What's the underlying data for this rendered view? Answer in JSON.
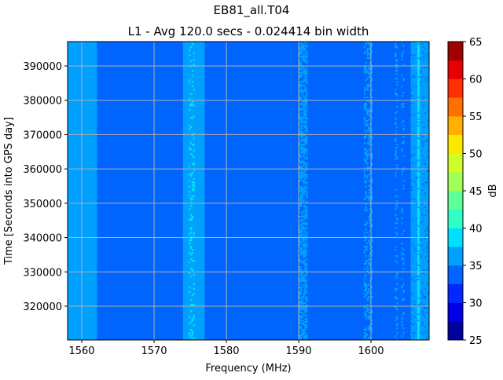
{
  "chart_data": {
    "type": "heatmap",
    "title": "EB81_all.T04",
    "subtitle": "L1 - Avg 120.0 secs - 0.024414 bin width",
    "xlabel": "Frequency (MHz)",
    "ylabel": "Time [Seconds into GPS day]",
    "xlim": [
      1558.04,
      1608.04
    ],
    "ylim": [
      310160,
      397090
    ],
    "xticks": [
      1560,
      1570,
      1580,
      1590,
      1600
    ],
    "yticks": [
      320000,
      330000,
      340000,
      350000,
      360000,
      370000,
      380000,
      390000
    ],
    "grid": true,
    "background_level_db": 33.5,
    "bands": [
      {
        "f0": 1558.04,
        "f1": 1562.1,
        "level_db": 36,
        "coverage": 1.0
      },
      {
        "f0": 1574.0,
        "f1": 1577.0,
        "level_db": 36,
        "coverage": 1.0
      },
      {
        "f0": 1574.8,
        "f1": 1575.6,
        "level_db": 38.5,
        "coverage": 0.2
      },
      {
        "f0": 1590.0,
        "f1": 1591.2,
        "level_db": 36,
        "coverage": 0.6
      },
      {
        "f0": 1599.0,
        "f1": 1600.2,
        "level_db": 36,
        "coverage": 0.35
      },
      {
        "f0": 1603.3,
        "f1": 1603.7,
        "level_db": 36,
        "coverage": 0.25
      },
      {
        "f0": 1604.2,
        "f1": 1604.6,
        "level_db": 36,
        "coverage": 0.2
      },
      {
        "f0": 1605.5,
        "f1": 1608.04,
        "level_db": 36,
        "coverage": 0.9
      },
      {
        "f0": 1606.4,
        "f1": 1606.7,
        "level_db": 38.5,
        "coverage": 0.9
      }
    ],
    "colorbar": {
      "label": "dB",
      "min": 25,
      "max": 65,
      "step": 2.5,
      "ticks": [
        25,
        30,
        35,
        40,
        45,
        50,
        55,
        60,
        65
      ],
      "colors": [
        "#00009f",
        "#0000e8",
        "#0028ff",
        "#0064ff",
        "#00a0ff",
        "#00e0ff",
        "#30ffc8",
        "#60ff98",
        "#a0ff58",
        "#d0ff28",
        "#ffe800",
        "#ffb000",
        "#ff7000",
        "#ff3000",
        "#e80000",
        "#a00000"
      ]
    }
  }
}
